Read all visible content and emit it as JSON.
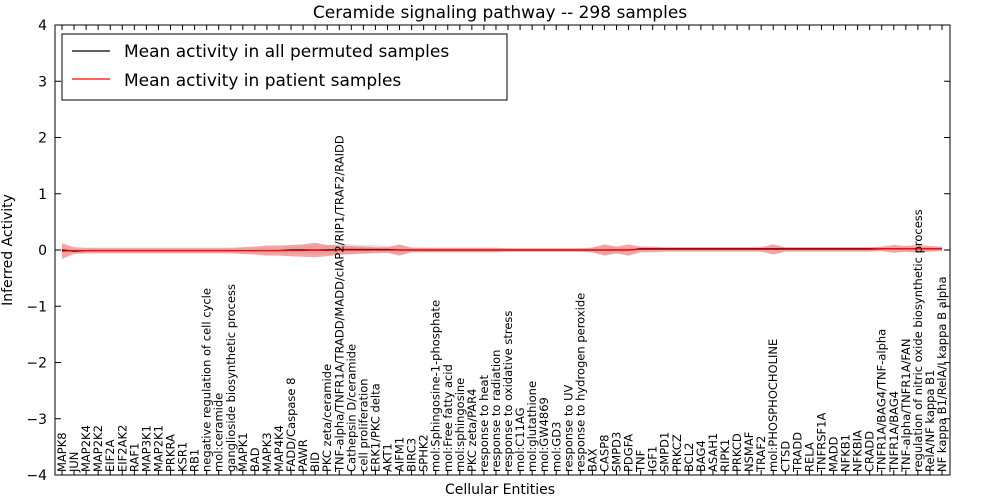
{
  "chart_data": {
    "type": "line",
    "title": "Ceramide signaling pathway -- 298 samples",
    "xlabel": "Cellular Entities",
    "ylabel": "Inferred Activity",
    "ylim": [
      -4,
      4
    ],
    "yticks": [
      "−4",
      "−3",
      "−2",
      "−1",
      "0",
      "1",
      "2",
      "3",
      "4"
    ],
    "grid": false,
    "legend_position": "top-left",
    "categories": [
      "MAPK8",
      "JUN",
      "MAP2K4",
      "MAP2K2",
      "EIF2A",
      "EIF2AK2",
      "RAF1",
      "MAP3K1",
      "MAP2K1",
      "PRKRA",
      "KSR1",
      "RB1",
      "negative regulation of cell cycle",
      "mol:ceramide",
      "ganglioside biosynthetic process",
      "MAPK1",
      "BAD",
      "MAPK3",
      "MAP4K4",
      "FADD/Caspase 8",
      "PAWR",
      "BID",
      "PKC zeta/ceramide",
      "TNF-alpha/TNFR1A/TRADD/MADD/cIAP2/RIP1/TRAF2/RAIDD",
      "Cathepsin D/ceramide",
      "cell proliferation",
      "ERK1/PKC delta",
      "AKT1",
      "AIFM1",
      "BIRC3",
      "SPHK2",
      "mol:Sphingosine-1-phosphate",
      "mol:Free fatty acid",
      "mol:sphingosine",
      "PKC zeta/PAR4",
      "response to heat",
      "response to radiation",
      "response to oxidative stress",
      "mol:C11AG",
      "mol:glutathione",
      "mol:GW4869",
      "mol:GD3",
      "response to UV",
      "response to hydrogen peroxide",
      "BAX",
      "CASP8",
      "SMPD3",
      "PDGFA",
      "TNF",
      "IGF1",
      "SMPD1",
      "PRKCZ",
      "BCL2",
      "BAG4",
      "ASAH1",
      "RIPK1",
      "PRKCD",
      "NSMAF",
      "TRAF2",
      "mol:PHOSPHOCHOLINE",
      "CTSD",
      "TRADD",
      "RELA",
      "TNFRSF1A",
      "MADD",
      "NFKB1",
      "NFKBIA",
      "CRADD",
      "TNFR1A/BAG4/TNF-alpha",
      "TNFR1A/BAG4",
      "TNF-alpha/TNFR1A/FAN",
      "regulation of nitric oxide biosynthetic process",
      "RelA/NF kappa B1",
      "NF kappa B1/RelA/I kappa B alpha"
    ],
    "series": [
      {
        "name": "Mean activity in all permuted samples",
        "color": "#000000",
        "values": [
          0.0,
          -0.02,
          -0.01,
          -0.01,
          -0.01,
          -0.01,
          -0.01,
          -0.01,
          -0.01,
          -0.01,
          -0.01,
          -0.01,
          -0.01,
          -0.01,
          -0.01,
          -0.01,
          -0.01,
          -0.01,
          -0.01,
          0.0,
          0.0,
          0.0,
          0.0,
          0.01,
          0.01,
          0.01,
          0.01,
          0.01,
          0.0,
          0.0,
          0.0,
          0.0,
          0.0,
          0.0,
          0.0,
          0.0,
          0.0,
          0.0,
          0.0,
          0.0,
          0.0,
          0.0,
          0.0,
          0.0,
          0.0,
          0.0,
          0.0,
          0.0,
          0.02,
          0.02,
          0.02,
          0.02,
          0.02,
          0.02,
          0.02,
          0.02,
          0.02,
          0.02,
          0.02,
          0.02,
          0.02,
          0.02,
          0.02,
          0.02,
          0.02,
          0.02,
          0.02,
          0.02,
          0.02,
          0.02,
          0.02,
          0.02,
          0.02,
          0.02
        ],
        "band": [
          0.05,
          0.03,
          0.03,
          0.03,
          0.03,
          0.03,
          0.03,
          0.03,
          0.03,
          0.03,
          0.03,
          0.03,
          0.03,
          0.03,
          0.03,
          0.04,
          0.04,
          0.05,
          0.05,
          0.06,
          0.07,
          0.08,
          0.08,
          0.1,
          0.09,
          0.08,
          0.08,
          0.06,
          0.05,
          0.04,
          0.04,
          0.03,
          0.03,
          0.03,
          0.03,
          0.03,
          0.03,
          0.03,
          0.03,
          0.03,
          0.03,
          0.03,
          0.03,
          0.03,
          0.05,
          0.06,
          0.05,
          0.04,
          0.03,
          0.03,
          0.03,
          0.03,
          0.03,
          0.03,
          0.03,
          0.03,
          0.03,
          0.03,
          0.03,
          0.04,
          0.03,
          0.03,
          0.03,
          0.03,
          0.03,
          0.03,
          0.03,
          0.03,
          0.03,
          0.03,
          0.03,
          0.03,
          0.03,
          0.03
        ],
        "band_color": "#c8c8c8"
      },
      {
        "name": "Mean activity in patient samples",
        "color": "#ff0000",
        "values": [
          -0.02,
          -0.01,
          -0.01,
          -0.01,
          -0.01,
          -0.01,
          -0.01,
          -0.01,
          -0.01,
          -0.01,
          -0.01,
          -0.01,
          -0.01,
          -0.01,
          -0.01,
          -0.01,
          -0.01,
          -0.01,
          -0.01,
          -0.01,
          -0.01,
          0.0,
          -0.01,
          0.0,
          0.0,
          0.0,
          0.0,
          0.0,
          0.0,
          0.0,
          0.0,
          0.0,
          0.0,
          0.0,
          0.0,
          0.0,
          0.0,
          0.0,
          0.0,
          0.0,
          0.0,
          0.0,
          0.0,
          0.0,
          0.0,
          0.0,
          0.0,
          0.0,
          0.01,
          0.01,
          0.01,
          0.01,
          0.01,
          0.01,
          0.01,
          0.01,
          0.01,
          0.01,
          0.01,
          0.01,
          0.01,
          0.01,
          0.01,
          0.01,
          0.01,
          0.01,
          0.01,
          0.01,
          0.02,
          0.02,
          0.02,
          0.02,
          0.02,
          0.02
        ],
        "band": [
          0.14,
          0.06,
          0.05,
          0.05,
          0.05,
          0.05,
          0.05,
          0.05,
          0.05,
          0.05,
          0.05,
          0.05,
          0.05,
          0.05,
          0.05,
          0.06,
          0.07,
          0.09,
          0.09,
          0.1,
          0.11,
          0.13,
          0.1,
          0.08,
          0.07,
          0.06,
          0.05,
          0.05,
          0.1,
          0.04,
          0.04,
          0.04,
          0.04,
          0.04,
          0.04,
          0.04,
          0.04,
          0.03,
          0.03,
          0.03,
          0.03,
          0.03,
          0.03,
          0.03,
          0.04,
          0.1,
          0.06,
          0.1,
          0.05,
          0.05,
          0.04,
          0.04,
          0.04,
          0.04,
          0.04,
          0.04,
          0.04,
          0.04,
          0.04,
          0.09,
          0.04,
          0.04,
          0.04,
          0.04,
          0.04,
          0.04,
          0.04,
          0.04,
          0.04,
          0.07,
          0.05,
          0.07,
          0.05,
          0.04
        ],
        "band_color": "#f08080"
      }
    ]
  }
}
